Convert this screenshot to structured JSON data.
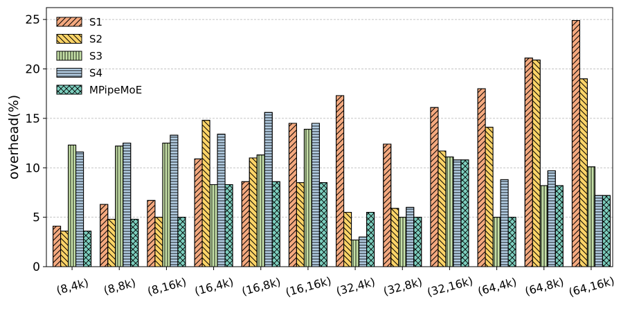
{
  "chart_data": {
    "type": "bar",
    "title": "",
    "xlabel": "",
    "ylabel": "overhead(%)",
    "ylim": [
      0,
      26.2
    ],
    "yticks": [
      0,
      5,
      10,
      15,
      20,
      25
    ],
    "grid": "horizontal dashed",
    "legend_placement": "top-left",
    "categories": [
      "(8,4k)",
      "(8,8k)",
      "(8,16k)",
      "(16,4k)",
      "(16,8k)",
      "(16,16k)",
      "(32,4k)",
      "(32,8k)",
      "(32,16k)",
      "(64,4k)",
      "(64,8k)",
      "(64,16k)"
    ],
    "series": [
      {
        "name": "S1",
        "color": "#f4a97f",
        "hatch": "diagonal",
        "values": [
          4.1,
          6.3,
          6.7,
          10.9,
          8.6,
          14.5,
          17.3,
          12.4,
          16.1,
          18.0,
          21.1,
          24.9
        ]
      },
      {
        "name": "S2",
        "color": "#fcd468",
        "hatch": "back-diagonal",
        "values": [
          3.6,
          4.8,
          5.0,
          14.8,
          11.0,
          8.5,
          5.5,
          5.9,
          11.7,
          14.1,
          20.9,
          19.0
        ]
      },
      {
        "name": "S3",
        "color": "#c6e1a8",
        "hatch": "vertical",
        "values": [
          12.3,
          12.2,
          12.5,
          8.3,
          11.3,
          13.9,
          2.7,
          5.0,
          11.1,
          5.0,
          8.2,
          10.1
        ]
      },
      {
        "name": "S4",
        "color": "#b3cde3",
        "hatch": "horizontal",
        "values": [
          11.6,
          12.5,
          13.3,
          13.4,
          15.6,
          14.5,
          3.0,
          6.0,
          10.8,
          8.8,
          9.7,
          7.2
        ]
      },
      {
        "name": "MPipeMoE",
        "color": "#7dcfbf",
        "hatch": "cross",
        "values": [
          3.6,
          4.8,
          5.0,
          8.3,
          8.6,
          8.5,
          5.5,
          5.0,
          10.8,
          5.0,
          8.2,
          7.2
        ]
      }
    ]
  }
}
